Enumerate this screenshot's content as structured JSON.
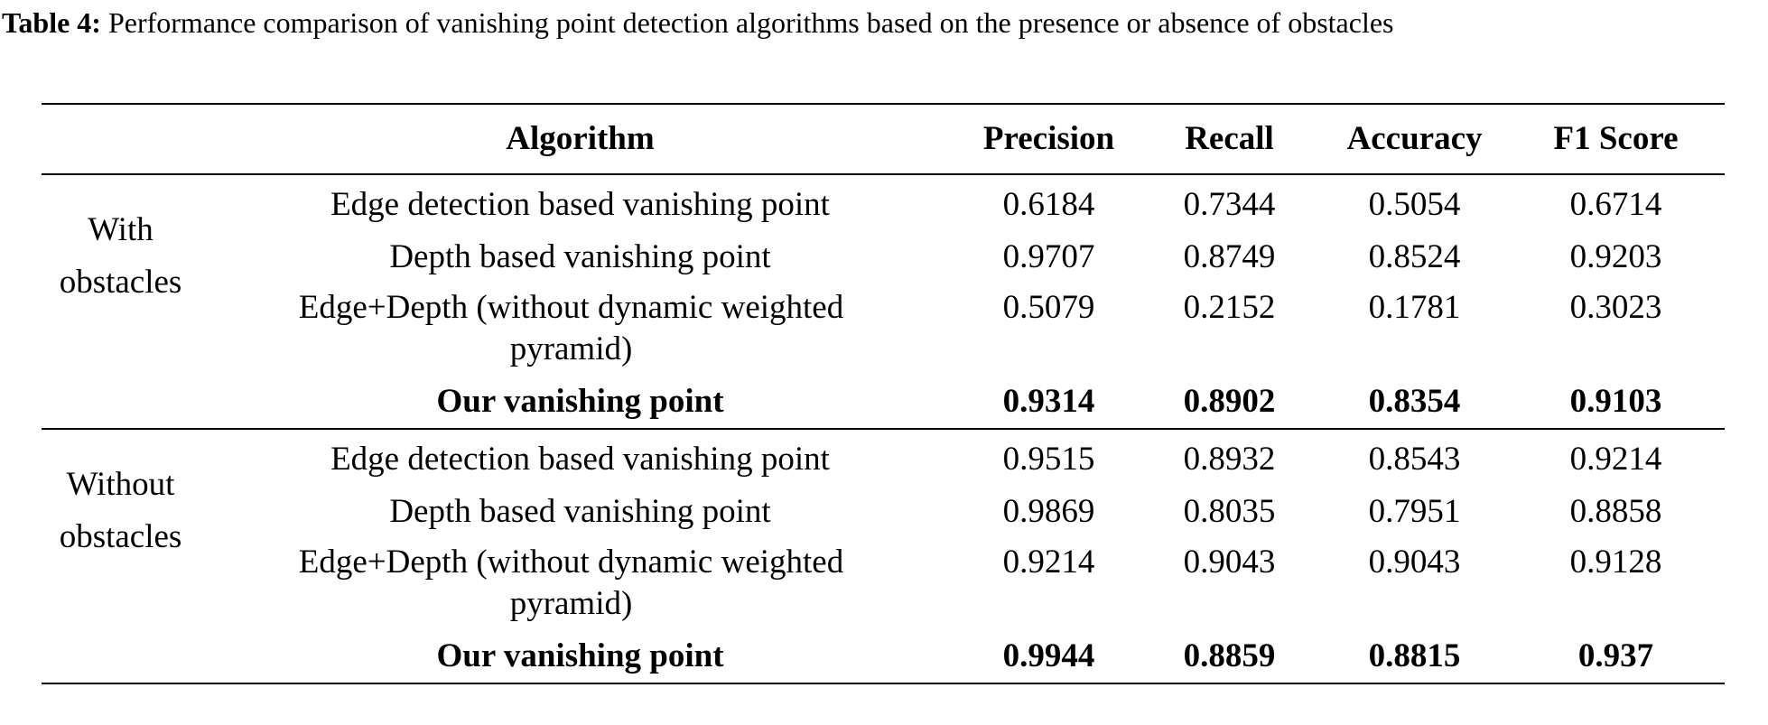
{
  "caption": {
    "label": "Table 4:",
    "text": " Performance comparison of vanishing point detection algorithms based on the presence or absence of obstacles"
  },
  "table": {
    "headers": [
      "",
      "Algorithm",
      "Precision",
      "Recall",
      "Accuracy",
      "F1 Score"
    ],
    "groups": [
      {
        "label_line1": "With",
        "label_line2": "obstacles",
        "rows": [
          {
            "algorithm": "Edge detection based vanishing point",
            "precision": "0.6184",
            "recall": "0.7344",
            "accuracy": "0.5054",
            "f1": "0.6714"
          },
          {
            "algorithm": "Depth based vanishing point",
            "precision": "0.9707",
            "recall": "0.8749",
            "accuracy": "0.8524",
            "f1": "0.9203"
          },
          {
            "algorithm": "Edge+Depth (without dynamic weighted pyramid)",
            "precision": "0.5079",
            "recall": "0.2152",
            "accuracy": "0.1781",
            "f1": "0.3023"
          },
          {
            "algorithm": "Our vanishing point",
            "precision": "0.9314",
            "recall": "0.8902",
            "accuracy": "0.8354",
            "f1": "0.9103"
          }
        ]
      },
      {
        "label_line1": "Without",
        "label_line2": "obstacles",
        "rows": [
          {
            "algorithm": "Edge detection based vanishing point",
            "precision": "0.9515",
            "recall": "0.8932",
            "accuracy": "0.8543",
            "f1": "0.9214"
          },
          {
            "algorithm": "Depth based vanishing point",
            "precision": "0.9869",
            "recall": "0.8035",
            "accuracy": "0.7951",
            "f1": "0.8858"
          },
          {
            "algorithm": "Edge+Depth (without dynamic weighted pyramid)",
            "precision": "0.9214",
            "recall": "0.9043",
            "accuracy": "0.9043",
            "f1": "0.9128"
          },
          {
            "algorithm": "Our vanishing point",
            "precision": "0.9944",
            "recall": "0.8859",
            "accuracy": "0.8815",
            "f1": "0.937"
          }
        ]
      }
    ]
  }
}
